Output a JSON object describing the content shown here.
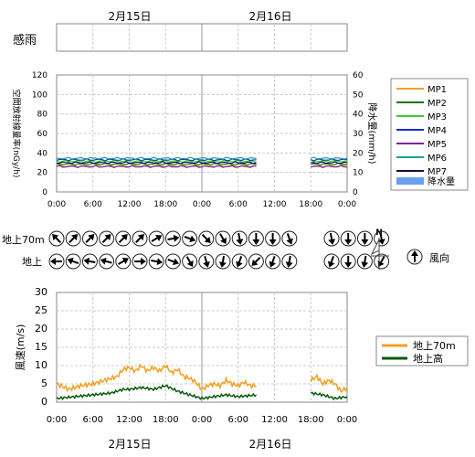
{
  "dates": [
    "2月15日",
    "2月16日"
  ],
  "time_ticks": [
    "0:00",
    "6:00",
    "12:00",
    "18:00",
    "0:00",
    "6:00",
    "12:00",
    "18:00",
    "0:00"
  ],
  "rain_label": "感雨",
  "wind_dir": {
    "row_labels": [
      "地上70m",
      "地上"
    ],
    "legend_label": "風向",
    "north_label": "N"
  },
  "colors": {
    "MP1": "#f0a020",
    "MP2": "#0a7a0a",
    "MP3": "#30d030",
    "MP4": "#1030d0",
    "MP5": "#8020a0",
    "MP6": "#20a0a0",
    "MP7": "#101040",
    "rain": "#6a9ff0",
    "wind70": "#f0a020",
    "windGround": "#0a5a0a"
  },
  "chart_data": [
    {
      "type": "line",
      "title": "",
      "ylabel": "空間放射線量率(nGy/h)",
      "y2label": "降水量(mm/h)",
      "xlim_hours": [
        0,
        48
      ],
      "ylim": [
        0,
        120
      ],
      "y2lim": [
        0,
        60
      ],
      "yticks": [
        0,
        20,
        40,
        60,
        80,
        100,
        120
      ],
      "y2ticks": [
        0,
        10,
        20,
        30,
        40,
        50,
        60
      ],
      "gaps_hours": [
        [
          33,
          42
        ]
      ],
      "series": [
        {
          "name": "MP1",
          "level": 26.5
        },
        {
          "name": "MP2",
          "level": 28.5
        },
        {
          "name": "MP3",
          "level": 31.5
        },
        {
          "name": "MP4",
          "level": 33.0
        },
        {
          "name": "MP5",
          "level": 26.0
        },
        {
          "name": "MP6",
          "level": 34.5
        },
        {
          "name": "MP7",
          "level": 30.0
        }
      ],
      "extra_legend": "降水量"
    },
    {
      "type": "line",
      "title": "",
      "ylabel": "風速(m/s)",
      "ylim": [
        0,
        30
      ],
      "yticks": [
        0,
        5,
        10,
        15,
        20,
        25,
        30
      ],
      "series": [
        {
          "name": "地上70m",
          "points": [
            [
              0,
              5
            ],
            [
              2,
              3.5
            ],
            [
              4,
              4.5
            ],
            [
              6,
              5
            ],
            [
              8,
              6
            ],
            [
              10,
              7
            ],
            [
              11,
              9
            ],
            [
              12,
              9.5
            ],
            [
              13,
              8.5
            ],
            [
              14,
              10
            ],
            [
              15,
              8.5
            ],
            [
              16,
              9.5
            ],
            [
              17,
              8.5
            ],
            [
              18,
              10
            ],
            [
              19,
              8
            ],
            [
              20,
              9
            ],
            [
              21,
              7
            ],
            [
              22,
              6.5
            ],
            [
              23,
              5.5
            ],
            [
              24,
              3.5
            ],
            [
              25,
              4.5
            ],
            [
              26,
              5
            ],
            [
              27,
              4.5
            ],
            [
              28,
              6
            ],
            [
              29,
              5
            ],
            [
              30,
              4.5
            ],
            [
              31,
              5.5
            ],
            [
              32,
              4.5
            ],
            [
              33,
              4.5
            ],
            [
              42,
              6
            ],
            [
              43,
              7
            ],
            [
              44,
              5
            ],
            [
              45,
              6
            ],
            [
              46,
              5
            ],
            [
              47,
              3
            ],
            [
              48,
              4
            ]
          ]
        },
        {
          "name": "地上高",
          "points": [
            [
              0,
              1
            ],
            [
              3,
              1.5
            ],
            [
              6,
              2
            ],
            [
              9,
              2.5
            ],
            [
              11,
              3.5
            ],
            [
              12,
              3.5
            ],
            [
              14,
              4
            ],
            [
              16,
              3.5
            ],
            [
              18,
              4.5
            ],
            [
              20,
              3
            ],
            [
              22,
              2
            ],
            [
              24,
              1
            ],
            [
              26,
              1.5
            ],
            [
              28,
              2
            ],
            [
              30,
              1.5
            ],
            [
              33,
              2
            ],
            [
              42,
              2.5
            ],
            [
              44,
              2
            ],
            [
              46,
              1
            ],
            [
              48,
              1.5
            ]
          ]
        }
      ]
    },
    {
      "type": "table",
      "title": "風向",
      "rows": [
        {
          "name": "地上70m",
          "angles": [
            315,
            45,
            45,
            45,
            45,
            45,
            60,
            80,
            110,
            135,
            150,
            170,
            180,
            180,
            160,
            170,
            180,
            180,
            170
          ]
        },
        {
          "name": "地上",
          "angles": [
            270,
            290,
            280,
            285,
            60,
            90,
            100,
            110,
            150,
            165,
            190,
            200,
            225,
            200,
            190,
            200,
            180,
            190,
            210
          ]
        }
      ]
    }
  ]
}
